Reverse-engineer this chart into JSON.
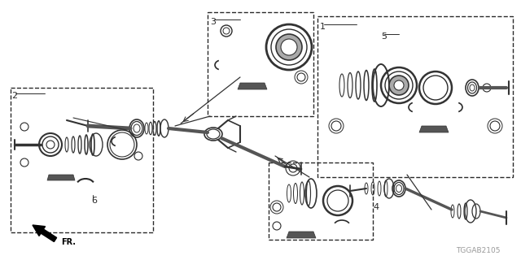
{
  "bg_color": "#ffffff",
  "lc": "#2a2a2a",
  "lc_light": "#888888",
  "part_code": "TGGAB2105",
  "fig_width": 6.4,
  "fig_height": 3.2,
  "dpi": 100,
  "font_size_label": 8,
  "font_size_code": 6.5,
  "font_size_fr": 7
}
